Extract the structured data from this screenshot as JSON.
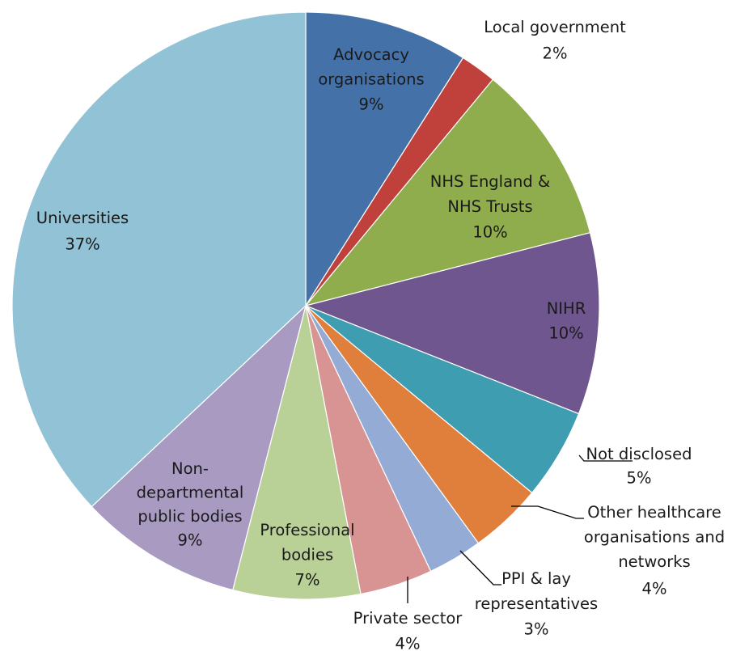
{
  "chart_data": {
    "type": "pie",
    "slices": [
      {
        "label": "Advocacy organisations",
        "value": 9,
        "pct_label": "9%",
        "color": "#4472a8"
      },
      {
        "label": "Local government",
        "value": 2,
        "pct_label": "2%",
        "color": "#c0403c"
      },
      {
        "label": "NHS England & NHS Trusts",
        "value": 10,
        "pct_label": "10%",
        "color": "#8fad4c"
      },
      {
        "label": "NIHR",
        "value": 10,
        "pct_label": "10%",
        "color": "#70568f"
      },
      {
        "label": "Not disclosed",
        "value": 5,
        "pct_label": "5%",
        "color": "#3f9db2"
      },
      {
        "label": "Other healthcare organisations and networks",
        "value": 4,
        "pct_label": "4%",
        "color": "#e07f3b"
      },
      {
        "label": "PPI & lay representatives",
        "value": 3,
        "pct_label": "3%",
        "color": "#94abd6"
      },
      {
        "label": "Private sector",
        "value": 4,
        "pct_label": "4%",
        "color": "#d79493"
      },
      {
        "label": "Professional bodies",
        "value": 7,
        "pct_label": "7%",
        "color": "#b9d097"
      },
      {
        "label": "Non-departmental public bodies",
        "value": 9,
        "pct_label": "9%",
        "color": "#a89ac0"
      },
      {
        "label": "Universities",
        "value": 37,
        "pct_label": "37%",
        "color": "#92c2d5"
      }
    ],
    "start_angle": "12 o'clock",
    "direction": "clockwise",
    "legend": "none"
  }
}
